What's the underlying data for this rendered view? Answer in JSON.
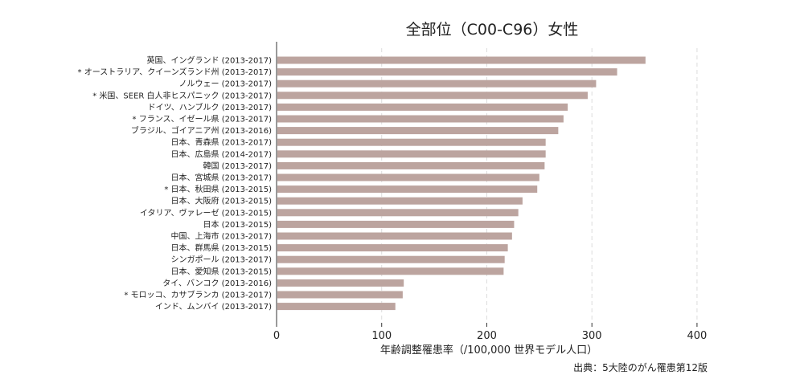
{
  "chart_data": {
    "type": "bar",
    "orientation": "horizontal",
    "title": "全部位（C00-C96）女性",
    "xlabel": "年齢調整罹患率（/100,000 世界モデル人口）",
    "ylabel": "",
    "source": "出典：5大陸のがん罹患第12版",
    "xlim": [
      0,
      410
    ],
    "xticks": [
      0,
      100,
      200,
      300,
      400
    ],
    "grid": "vertical dashed",
    "bar_color": "#bca49f",
    "categories": [
      "英国、イングランド (2013-2017)",
      "* オーストラリア、クイーンズランド州 (2013-2017)",
      "ノルウェー (2013-2017)",
      "* 米国、SEER 白人非ヒスパニック (2013-2017)",
      "ドイツ、ハンブルク (2013-2017)",
      "* フランス、イゼール県 (2013-2017)",
      "ブラジル、ゴイアニア州 (2013-2016)",
      "日本、青森県 (2013-2017)",
      "日本、広島県 (2014-2017)",
      "韓国 (2013-2017)",
      "日本、宮城県 (2013-2017)",
      "* 日本、秋田県 (2013-2015)",
      "日本、大阪府 (2013-2015)",
      "イタリア、ヴァレーゼ (2013-2015)",
      "日本 (2013-2015)",
      "中国、上海市 (2013-2017)",
      "日本、群馬県 (2013-2015)",
      "シンガポール (2013-2017)",
      "日本、愛知県 (2013-2015)",
      "タイ、バンコク (2013-2016)",
      "* モロッコ、カサブランカ (2013-2017)",
      "インド、ムンバイ (2013-2017)"
    ],
    "values": [
      351,
      324,
      304,
      296,
      277,
      273,
      268,
      256,
      256,
      255,
      250,
      248,
      234,
      230,
      226,
      224,
      220,
      217,
      216,
      121,
      120,
      113
    ]
  }
}
